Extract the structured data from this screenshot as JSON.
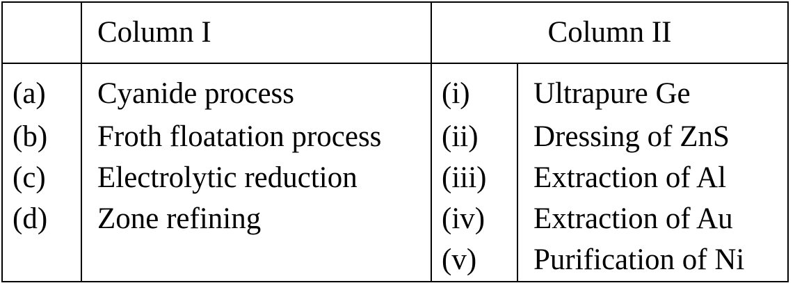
{
  "header": {
    "column_i": "Column I",
    "column_ii": "Column II"
  },
  "rows": [
    {
      "i_label": "(a)",
      "i_text": "Cyanide process",
      "ii_label": "(i)",
      "ii_text": "Ultrapure Ge"
    },
    {
      "i_label": "(b)",
      "i_text": "Froth floatation process",
      "ii_label": "(ii)",
      "ii_text": "Dressing of ZnS"
    },
    {
      "i_label": "(c)",
      "i_text": "Electrolytic reduction",
      "ii_label": "(iii)",
      "ii_text": "Extraction of Al"
    },
    {
      "i_label": "(d)",
      "i_text": "Zone refining",
      "ii_label": "(iv)",
      "ii_text": "Extraction of Au"
    },
    {
      "i_label": "",
      "i_text": "",
      "ii_label": "(v)",
      "ii_text": "Purification of Ni"
    }
  ]
}
